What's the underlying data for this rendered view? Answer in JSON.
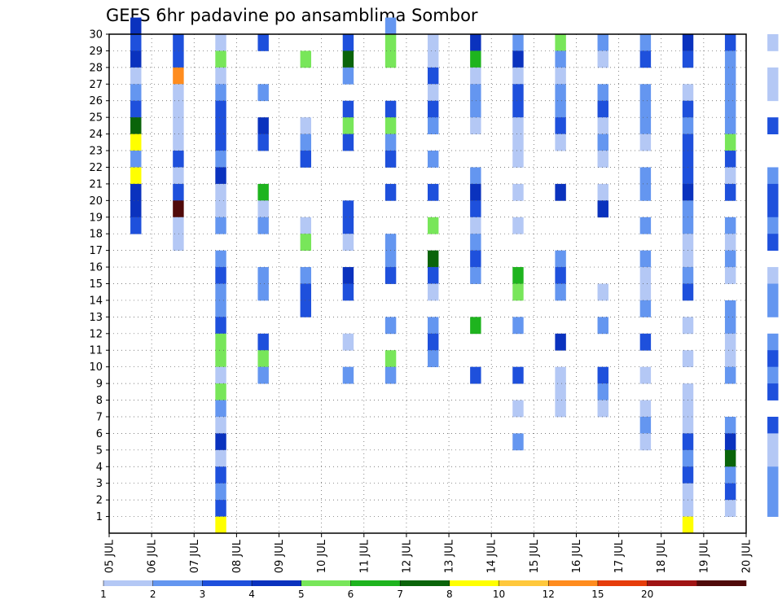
{
  "chart_data": {
    "type": "heatmap",
    "title": "GEFS 6hr padavine po ansamblima Sombor",
    "xlabel": "",
    "ylabel": "",
    "x_tick_labels": [
      "05 JUL",
      "06 JUL",
      "07 JUL",
      "08 JUL",
      "09 JUL",
      "10 JUL",
      "11 JUL",
      "12 JUL",
      "13 JUL",
      "14 JUL",
      "15 JUL",
      "16 JUL",
      "17 JUL",
      "18 JUL",
      "19 JUL",
      "20 JUL"
    ],
    "y_tick_labels": [
      "1",
      "2",
      "3",
      "4",
      "5",
      "6",
      "7",
      "8",
      "9",
      "10",
      "11",
      "12",
      "13",
      "14",
      "15",
      "16",
      "17",
      "18",
      "19",
      "20",
      "21",
      "22",
      "23",
      "24",
      "25",
      "26",
      "27",
      "28",
      "29",
      "30"
    ],
    "x_range_steps": [
      0,
      60
    ],
    "y_range_members": [
      0,
      30
    ],
    "time_step": "6hr",
    "grid": "dotted",
    "colorbar": {
      "position": "bottom",
      "labels": [
        "1",
        "2",
        "3",
        "4",
        "5",
        "6",
        "7",
        "8",
        "10",
        "12",
        "15",
        "20"
      ],
      "colors": [
        "#b4c8f5",
        "#6496f0",
        "#1e50dc",
        "#0a32be",
        "#78e65a",
        "#1eb41e",
        "#0a640a",
        "#ffff00",
        "#ffc83c",
        "#ff8c1e",
        "#e63c0a",
        "#a01414",
        "#500a0a"
      ]
    },
    "cells": [
      [
        0,
        30,
        3
      ],
      [
        0,
        29,
        2
      ],
      [
        0,
        28,
        3
      ],
      [
        0,
        27,
        0
      ],
      [
        0,
        26,
        1
      ],
      [
        0,
        25,
        2
      ],
      [
        0,
        24,
        6
      ],
      [
        0,
        23,
        7
      ],
      [
        0,
        22,
        1
      ],
      [
        0,
        21,
        7
      ],
      [
        0,
        20,
        3
      ],
      [
        0,
        19,
        3
      ],
      [
        0,
        18,
        2
      ],
      [
        1,
        29,
        2
      ],
      [
        1,
        28,
        2
      ],
      [
        1,
        27,
        9
      ],
      [
        1,
        26,
        0
      ],
      [
        1,
        25,
        0
      ],
      [
        1,
        24,
        0
      ],
      [
        1,
        23,
        0
      ],
      [
        1,
        22,
        2
      ],
      [
        1,
        21,
        0
      ],
      [
        1,
        20,
        2
      ],
      [
        1,
        19,
        12
      ],
      [
        1,
        18,
        0
      ],
      [
        1,
        17,
        0
      ],
      [
        2,
        29,
        0
      ],
      [
        2,
        28,
        4
      ],
      [
        2,
        27,
        0
      ],
      [
        2,
        26,
        1
      ],
      [
        2,
        25,
        2
      ],
      [
        2,
        24,
        2
      ],
      [
        2,
        23,
        2
      ],
      [
        2,
        22,
        1
      ],
      [
        2,
        21,
        3
      ],
      [
        2,
        20,
        0
      ],
      [
        2,
        19,
        0
      ],
      [
        2,
        18,
        1
      ],
      [
        2,
        16,
        1
      ],
      [
        2,
        15,
        2
      ],
      [
        2,
        14,
        1
      ],
      [
        2,
        13,
        1
      ],
      [
        2,
        12,
        2
      ],
      [
        2,
        11,
        4
      ],
      [
        2,
        10,
        4
      ],
      [
        2,
        9,
        0
      ],
      [
        2,
        8,
        4
      ],
      [
        2,
        7,
        1
      ],
      [
        2,
        6,
        0
      ],
      [
        2,
        5,
        3
      ],
      [
        2,
        4,
        0
      ],
      [
        2,
        3,
        2
      ],
      [
        2,
        2,
        1
      ],
      [
        2,
        1,
        2
      ],
      [
        2,
        0,
        7
      ],
      [
        3,
        29,
        2
      ],
      [
        3,
        26,
        1
      ],
      [
        3,
        24,
        3
      ],
      [
        3,
        23,
        2
      ],
      [
        3,
        20,
        5
      ],
      [
        3,
        19,
        0
      ],
      [
        3,
        18,
        1
      ],
      [
        3,
        15,
        1
      ],
      [
        3,
        14,
        1
      ],
      [
        3,
        11,
        2
      ],
      [
        3,
        10,
        4
      ],
      [
        3,
        9,
        1
      ],
      [
        4,
        28,
        4
      ],
      [
        4,
        24,
        0
      ],
      [
        4,
        23,
        1
      ],
      [
        4,
        22,
        2
      ],
      [
        4,
        18,
        0
      ],
      [
        4,
        17,
        4
      ],
      [
        4,
        15,
        1
      ],
      [
        4,
        14,
        2
      ],
      [
        4,
        13,
        2
      ],
      [
        5,
        29,
        2
      ],
      [
        5,
        28,
        6
      ],
      [
        5,
        27,
        1
      ],
      [
        5,
        25,
        2
      ],
      [
        5,
        24,
        4
      ],
      [
        5,
        23,
        2
      ],
      [
        5,
        19,
        2
      ],
      [
        5,
        18,
        2
      ],
      [
        5,
        17,
        0
      ],
      [
        5,
        15,
        3
      ],
      [
        5,
        14,
        2
      ],
      [
        5,
        11,
        0
      ],
      [
        5,
        9,
        1
      ],
      [
        6,
        30,
        1
      ],
      [
        6,
        29,
        4
      ],
      [
        6,
        28,
        4
      ],
      [
        6,
        25,
        2
      ],
      [
        6,
        24,
        4
      ],
      [
        6,
        23,
        1
      ],
      [
        6,
        22,
        2
      ],
      [
        6,
        20,
        2
      ],
      [
        6,
        17,
        1
      ],
      [
        6,
        16,
        1
      ],
      [
        6,
        15,
        2
      ],
      [
        6,
        12,
        1
      ],
      [
        6,
        10,
        4
      ],
      [
        6,
        9,
        1
      ],
      [
        7,
        29,
        0
      ],
      [
        7,
        28,
        0
      ],
      [
        7,
        27,
        2
      ],
      [
        7,
        26,
        0
      ],
      [
        7,
        25,
        2
      ],
      [
        7,
        24,
        1
      ],
      [
        7,
        22,
        1
      ],
      [
        7,
        20,
        2
      ],
      [
        7,
        18,
        4
      ],
      [
        7,
        16,
        6
      ],
      [
        7,
        15,
        2
      ],
      [
        7,
        14,
        0
      ],
      [
        7,
        12,
        1
      ],
      [
        7,
        11,
        2
      ],
      [
        7,
        10,
        1
      ],
      [
        8,
        29,
        3
      ],
      [
        8,
        28,
        5
      ],
      [
        8,
        27,
        0
      ],
      [
        8,
        26,
        1
      ],
      [
        8,
        25,
        1
      ],
      [
        8,
        24,
        0
      ],
      [
        8,
        21,
        1
      ],
      [
        8,
        20,
        3
      ],
      [
        8,
        19,
        2
      ],
      [
        8,
        18,
        0
      ],
      [
        8,
        17,
        1
      ],
      [
        8,
        16,
        2
      ],
      [
        8,
        15,
        1
      ],
      [
        8,
        12,
        5
      ],
      [
        8,
        9,
        2
      ],
      [
        9,
        29,
        1
      ],
      [
        9,
        28,
        3
      ],
      [
        9,
        27,
        0
      ],
      [
        9,
        26,
        2
      ],
      [
        9,
        25,
        2
      ],
      [
        9,
        24,
        0
      ],
      [
        9,
        23,
        0
      ],
      [
        9,
        22,
        0
      ],
      [
        9,
        20,
        0
      ],
      [
        9,
        18,
        0
      ],
      [
        9,
        15,
        5
      ],
      [
        9,
        14,
        4
      ],
      [
        9,
        12,
        1
      ],
      [
        9,
        9,
        2
      ],
      [
        9,
        7,
        0
      ],
      [
        9,
        5,
        1
      ],
      [
        10,
        29,
        4
      ],
      [
        10,
        28,
        1
      ],
      [
        10,
        27,
        0
      ],
      [
        10,
        26,
        1
      ],
      [
        10,
        25,
        1
      ],
      [
        10,
        24,
        2
      ],
      [
        10,
        23,
        0
      ],
      [
        10,
        20,
        3
      ],
      [
        10,
        16,
        1
      ],
      [
        10,
        15,
        2
      ],
      [
        10,
        14,
        1
      ],
      [
        10,
        11,
        3
      ],
      [
        10,
        9,
        0
      ],
      [
        10,
        8,
        0
      ],
      [
        10,
        7,
        0
      ],
      [
        11,
        29,
        1
      ],
      [
        11,
        28,
        0
      ],
      [
        11,
        26,
        1
      ],
      [
        11,
        25,
        2
      ],
      [
        11,
        24,
        0
      ],
      [
        11,
        23,
        1
      ],
      [
        11,
        22,
        0
      ],
      [
        11,
        20,
        0
      ],
      [
        11,
        19,
        3
      ],
      [
        11,
        14,
        0
      ],
      [
        11,
        12,
        1
      ],
      [
        11,
        9,
        2
      ],
      [
        11,
        8,
        1
      ],
      [
        11,
        7,
        0
      ],
      [
        12,
        29,
        1
      ],
      [
        12,
        28,
        2
      ],
      [
        12,
        26,
        1
      ],
      [
        12,
        25,
        1
      ],
      [
        12,
        24,
        1
      ],
      [
        12,
        23,
        0
      ],
      [
        12,
        21,
        1
      ],
      [
        12,
        20,
        1
      ],
      [
        12,
        18,
        1
      ],
      [
        12,
        16,
        1
      ],
      [
        12,
        15,
        0
      ],
      [
        12,
        14,
        0
      ],
      [
        12,
        13,
        1
      ],
      [
        12,
        11,
        2
      ],
      [
        12,
        9,
        0
      ],
      [
        12,
        7,
        0
      ],
      [
        12,
        6,
        1
      ],
      [
        12,
        5,
        0
      ],
      [
        13,
        29,
        3
      ],
      [
        13,
        28,
        2
      ],
      [
        13,
        26,
        0
      ],
      [
        13,
        25,
        2
      ],
      [
        13,
        24,
        1
      ],
      [
        13,
        23,
        2
      ],
      [
        13,
        22,
        2
      ],
      [
        13,
        21,
        2
      ],
      [
        13,
        20,
        3
      ],
      [
        13,
        19,
        1
      ],
      [
        13,
        18,
        1
      ],
      [
        13,
        17,
        0
      ],
      [
        13,
        16,
        0
      ],
      [
        13,
        15,
        1
      ],
      [
        13,
        14,
        2
      ],
      [
        13,
        12,
        0
      ],
      [
        13,
        10,
        0
      ],
      [
        13,
        8,
        0
      ],
      [
        13,
        7,
        0
      ],
      [
        13,
        6,
        0
      ],
      [
        13,
        5,
        2
      ],
      [
        13,
        4,
        1
      ],
      [
        13,
        3,
        2
      ],
      [
        13,
        2,
        0
      ],
      [
        13,
        1,
        0
      ],
      [
        13,
        0,
        7
      ],
      [
        14,
        29,
        2
      ],
      [
        14,
        28,
        1
      ],
      [
        14,
        27,
        1
      ],
      [
        14,
        26,
        1
      ],
      [
        14,
        25,
        1
      ],
      [
        14,
        24,
        1
      ],
      [
        14,
        23,
        4
      ],
      [
        14,
        22,
        2
      ],
      [
        14,
        21,
        0
      ],
      [
        14,
        20,
        2
      ],
      [
        14,
        18,
        1
      ],
      [
        14,
        17,
        0
      ],
      [
        14,
        16,
        1
      ],
      [
        14,
        15,
        0
      ],
      [
        14,
        13,
        1
      ],
      [
        14,
        12,
        1
      ],
      [
        14,
        11,
        0
      ],
      [
        14,
        10,
        0
      ],
      [
        14,
        9,
        1
      ],
      [
        14,
        6,
        1
      ],
      [
        14,
        5,
        3
      ],
      [
        14,
        4,
        6
      ],
      [
        14,
        3,
        1
      ],
      [
        14,
        2,
        2
      ],
      [
        14,
        1,
        0
      ],
      [
        15,
        29,
        0
      ],
      [
        15,
        27,
        0
      ],
      [
        15,
        26,
        0
      ],
      [
        15,
        24,
        2
      ],
      [
        15,
        21,
        1
      ],
      [
        15,
        20,
        2
      ],
      [
        15,
        19,
        2
      ],
      [
        15,
        18,
        1
      ],
      [
        15,
        17,
        2
      ],
      [
        15,
        15,
        0
      ],
      [
        15,
        14,
        1
      ],
      [
        15,
        13,
        1
      ],
      [
        15,
        11,
        1
      ],
      [
        15,
        10,
        2
      ],
      [
        15,
        9,
        1
      ],
      [
        15,
        8,
        2
      ],
      [
        15,
        6,
        2
      ],
      [
        15,
        5,
        0
      ],
      [
        15,
        4,
        0
      ],
      [
        15,
        3,
        1
      ],
      [
        15,
        2,
        1
      ],
      [
        15,
        1,
        1
      ]
    ]
  }
}
